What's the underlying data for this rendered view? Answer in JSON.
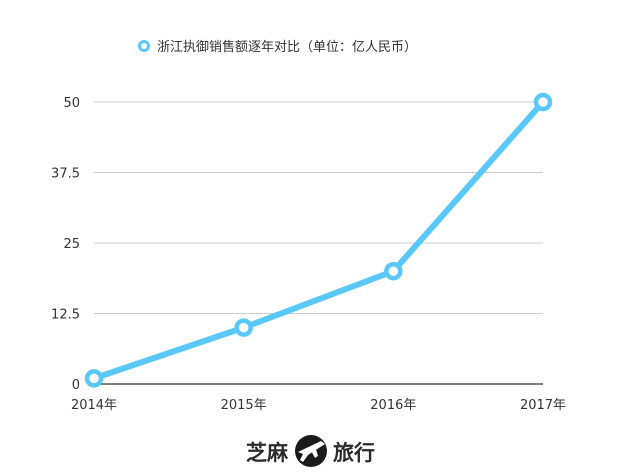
{
  "chart_data": {
    "type": "line",
    "title": "",
    "xlabel": "",
    "ylabel": "",
    "categories": [
      "2014年",
      "2015年",
      "2016年",
      "2017年"
    ],
    "series": [
      {
        "name": "浙江执御销售额逐年对比（单位：亿人民币）",
        "values": [
          1,
          10,
          20,
          50
        ],
        "color": "#5ac8fa"
      }
    ],
    "ylim": [
      0,
      50
    ],
    "yticks": [
      "0",
      "12.5",
      "25",
      "37.5",
      "50"
    ],
    "grid": true,
    "legend": "top-center"
  },
  "watermark": {
    "left_text": "芝麻",
    "right_text": "旅行",
    "logo_icon": "airplane-icon"
  }
}
